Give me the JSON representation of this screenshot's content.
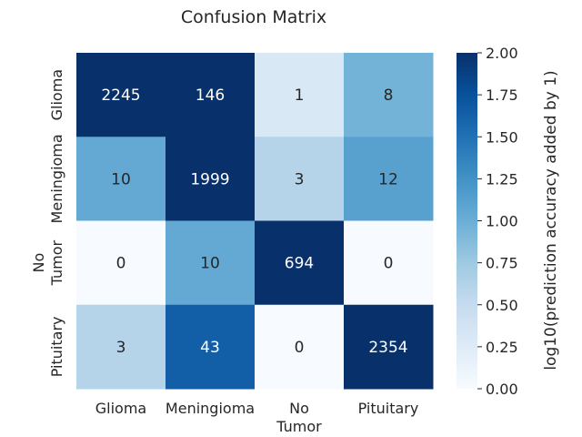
{
  "chart_data": {
    "type": "heatmap",
    "title": "Confusion Matrix",
    "x_categories": [
      [
        "Glioma"
      ],
      [
        "Meningioma"
      ],
      [
        "No",
        "Tumor"
      ],
      [
        "Pituitary"
      ]
    ],
    "y_categories": [
      [
        "Glioma"
      ],
      [
        "Meningioma"
      ],
      [
        "No",
        "Tumor"
      ],
      [
        "Pituitary"
      ]
    ],
    "values": [
      [
        2245,
        146,
        1,
        8
      ],
      [
        10,
        1999,
        3,
        12
      ],
      [
        0,
        10,
        694,
        0
      ],
      [
        3,
        43,
        0,
        2354
      ]
    ],
    "color_scale": "log10(value + 1)",
    "colormap": "Blues",
    "colorbar": {
      "label": "log10(prediction accuracy added by 1)",
      "range": [
        0,
        2
      ],
      "ticks": [
        "0.00",
        "0.25",
        "0.50",
        "0.75",
        "1.00",
        "1.25",
        "1.50",
        "1.75",
        "2.00"
      ]
    },
    "grid": false,
    "legend": "colorbar-right"
  }
}
